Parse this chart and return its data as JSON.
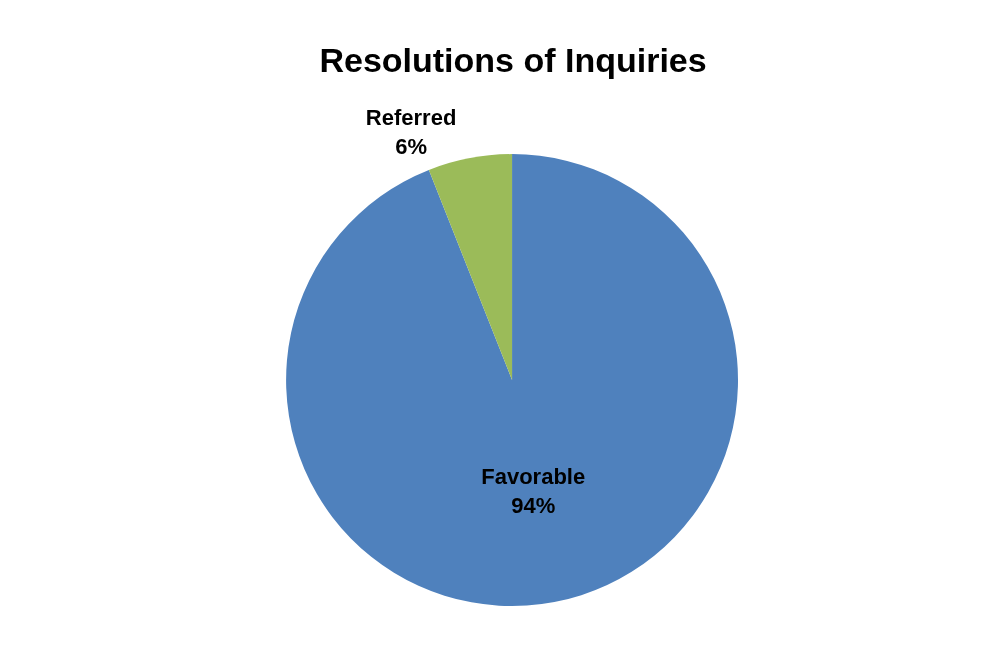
{
  "chart_data": {
    "type": "pie",
    "title": "Resolutions of Inquiries",
    "categories": [
      "Favorable",
      "Referred"
    ],
    "values": [
      94,
      6
    ],
    "value_labels": [
      "94%",
      "6%"
    ],
    "colors": [
      "#4f81bd",
      "#9bbb59"
    ],
    "legend": false
  }
}
